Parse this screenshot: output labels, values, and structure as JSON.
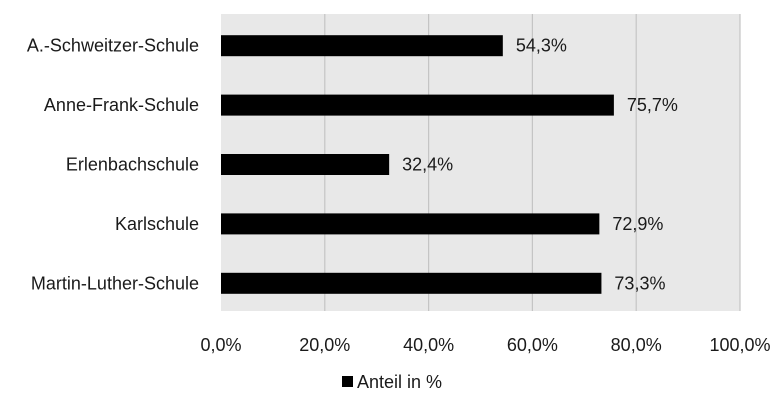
{
  "chart_data": {
    "type": "bar",
    "orientation": "horizontal",
    "title": "",
    "xlabel": "",
    "ylabel": "",
    "categories": [
      "A.-Schweitzer-Schule",
      "Anne-Frank-Schule",
      "Erlenbachschule",
      "Karlschule",
      "Martin-Luther-Schule"
    ],
    "series": [
      {
        "name": "Anteil in %",
        "values": [
          54.3,
          75.7,
          32.4,
          72.9,
          73.3
        ],
        "value_labels": [
          "54,3%",
          "75,7%",
          "32,4%",
          "72,9%",
          "73,3%"
        ]
      }
    ],
    "xlim": [
      0,
      100
    ],
    "x_ticks": [
      0,
      20,
      40,
      60,
      80,
      100
    ],
    "x_tick_labels": [
      "0,0%",
      "20,0%",
      "40,0%",
      "60,0%",
      "80,0%",
      "100,0%"
    ],
    "grid": "vertical",
    "legend_position": "bottom",
    "colors": {
      "bar": "#000000",
      "plot_background": "#e8e8e8",
      "gridline": "#c4c4c4",
      "text": "#1a1a1a"
    }
  }
}
